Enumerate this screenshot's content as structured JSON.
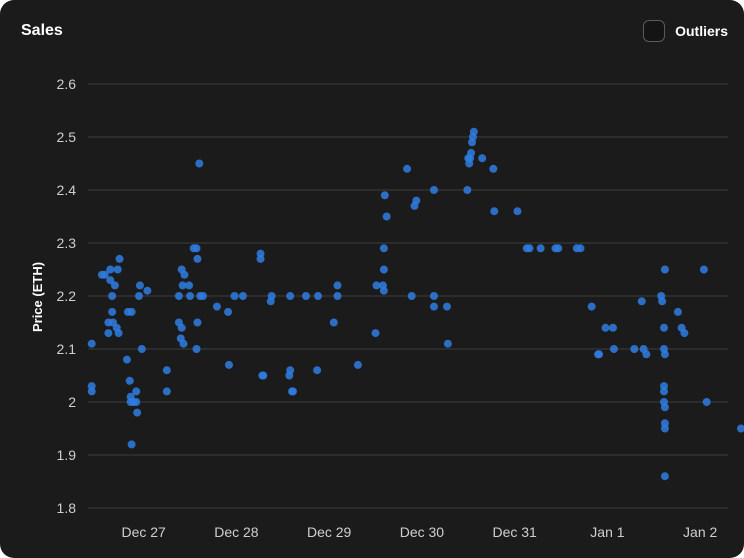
{
  "header": {
    "title": "Sales"
  },
  "toggle": {
    "label": "Outliers",
    "checked": false
  },
  "colors": {
    "background": "#1b1b1b",
    "point": "#2f7de1",
    "grid": "#3d3d3d"
  },
  "chart_data": {
    "type": "scatter",
    "title": "Sales",
    "ylabel": "Price (ETH)",
    "xlabel": "",
    "xlim": [
      -0.6,
      6.3
    ],
    "ylim": [
      1.8,
      2.6
    ],
    "yticks": [
      1.8,
      1.9,
      2.0,
      2.1,
      2.2,
      2.3,
      2.4,
      2.5,
      2.6
    ],
    "xtick_positions": [
      0,
      1,
      2,
      3,
      4,
      5,
      6
    ],
    "xtick_labels": [
      "Dec 27",
      "Dec 28",
      "Dec 29",
      "Dec 30",
      "Dec 31",
      "Jan 1",
      "Jan 2"
    ],
    "grid": "horizontal",
    "points": [
      [
        -0.56,
        2.02
      ],
      [
        -0.56,
        2.03
      ],
      [
        -0.56,
        2.11
      ],
      [
        -0.45,
        2.24
      ],
      [
        -0.42,
        2.24
      ],
      [
        -0.38,
        2.13
      ],
      [
        -0.38,
        2.15
      ],
      [
        -0.36,
        2.23
      ],
      [
        -0.36,
        2.25
      ],
      [
        -0.34,
        2.2
      ],
      [
        -0.34,
        2.17
      ],
      [
        -0.33,
        2.15
      ],
      [
        -0.31,
        2.22
      ],
      [
        -0.29,
        2.14
      ],
      [
        -0.28,
        2.25
      ],
      [
        -0.26,
        2.27
      ],
      [
        -0.27,
        2.13
      ],
      [
        -0.18,
        2.08
      ],
      [
        -0.17,
        2.17
      ],
      [
        -0.15,
        2.04
      ],
      [
        -0.14,
        2.01
      ],
      [
        -0.14,
        2.0
      ],
      [
        -0.13,
        2.17
      ],
      [
        -0.13,
        1.92
      ],
      [
        -0.11,
        2.0
      ],
      [
        -0.08,
        2.0
      ],
      [
        -0.08,
        2.02
      ],
      [
        -0.07,
        1.98
      ],
      [
        -0.05,
        2.2
      ],
      [
        -0.04,
        2.22
      ],
      [
        -0.02,
        2.1
      ],
      [
        0.04,
        2.21
      ],
      [
        0.25,
        2.02
      ],
      [
        0.25,
        2.06
      ],
      [
        0.38,
        2.2
      ],
      [
        0.38,
        2.15
      ],
      [
        0.4,
        2.12
      ],
      [
        0.41,
        2.14
      ],
      [
        0.41,
        2.25
      ],
      [
        0.42,
        2.22
      ],
      [
        0.43,
        2.11
      ],
      [
        0.44,
        2.24
      ],
      [
        0.49,
        2.22
      ],
      [
        0.5,
        2.2
      ],
      [
        0.54,
        2.29
      ],
      [
        0.57,
        2.29
      ],
      [
        0.58,
        2.27
      ],
      [
        0.58,
        2.15
      ],
      [
        0.57,
        2.1
      ],
      [
        0.6,
        2.45
      ],
      [
        0.61,
        2.2
      ],
      [
        0.64,
        2.2
      ],
      [
        0.79,
        2.18
      ],
      [
        0.91,
        2.17
      ],
      [
        0.92,
        2.07
      ],
      [
        0.98,
        2.2
      ],
      [
        1.07,
        2.2
      ],
      [
        1.26,
        2.27
      ],
      [
        1.26,
        2.28
      ],
      [
        1.28,
        2.05
      ],
      [
        1.29,
        2.05
      ],
      [
        1.37,
        2.19
      ],
      [
        1.38,
        2.2
      ],
      [
        1.57,
        2.05
      ],
      [
        1.58,
        2.06
      ],
      [
        1.6,
        2.02
      ],
      [
        1.61,
        2.02
      ],
      [
        1.58,
        2.2
      ],
      [
        1.75,
        2.2
      ],
      [
        1.87,
        2.06
      ],
      [
        1.88,
        2.2
      ],
      [
        2.05,
        2.15
      ],
      [
        2.09,
        2.2
      ],
      [
        2.09,
        2.22
      ],
      [
        2.31,
        2.07
      ],
      [
        2.5,
        2.13
      ],
      [
        2.51,
        2.22
      ],
      [
        2.58,
        2.22
      ],
      [
        2.59,
        2.21
      ],
      [
        2.59,
        2.25
      ],
      [
        2.59,
        2.29
      ],
      [
        2.6,
        2.39
      ],
      [
        2.62,
        2.35
      ],
      [
        2.84,
        2.44
      ],
      [
        2.89,
        2.2
      ],
      [
        2.92,
        2.37
      ],
      [
        2.94,
        2.38
      ],
      [
        3.13,
        2.4
      ],
      [
        3.13,
        2.18
      ],
      [
        3.13,
        2.2
      ],
      [
        3.27,
        2.18
      ],
      [
        3.28,
        2.11
      ],
      [
        3.49,
        2.4
      ],
      [
        3.5,
        2.46
      ],
      [
        3.51,
        2.45
      ],
      [
        3.52,
        2.46
      ],
      [
        3.53,
        2.47
      ],
      [
        3.54,
        2.49
      ],
      [
        3.55,
        2.5
      ],
      [
        3.56,
        2.51
      ],
      [
        3.65,
        2.46
      ],
      [
        3.77,
        2.44
      ],
      [
        3.78,
        2.36
      ],
      [
        4.03,
        2.36
      ],
      [
        4.13,
        2.29
      ],
      [
        4.16,
        2.29
      ],
      [
        4.28,
        2.29
      ],
      [
        4.44,
        2.29
      ],
      [
        4.47,
        2.29
      ],
      [
        4.67,
        2.29
      ],
      [
        4.71,
        2.29
      ],
      [
        4.83,
        2.18
      ],
      [
        4.9,
        2.09
      ],
      [
        4.91,
        2.09
      ],
      [
        4.98,
        2.14
      ],
      [
        5.06,
        2.14
      ],
      [
        5.07,
        2.1
      ],
      [
        5.29,
        2.1
      ],
      [
        5.37,
        2.19
      ],
      [
        5.39,
        2.1
      ],
      [
        5.42,
        2.09
      ],
      [
        5.58,
        2.2
      ],
      [
        5.59,
        2.19
      ],
      [
        5.61,
        2.14
      ],
      [
        5.61,
        2.1
      ],
      [
        5.62,
        2.25
      ],
      [
        5.61,
        2.03
      ],
      [
        5.61,
        2.02
      ],
      [
        5.61,
        2.0
      ],
      [
        5.62,
        1.99
      ],
      [
        5.62,
        1.96
      ],
      [
        5.62,
        1.95
      ],
      [
        5.62,
        1.86
      ],
      [
        5.62,
        2.09
      ],
      [
        5.76,
        2.17
      ],
      [
        5.8,
        2.14
      ],
      [
        5.83,
        2.13
      ],
      [
        6.04,
        2.25
      ],
      [
        6.07,
        2.0
      ],
      [
        6.44,
        1.95
      ]
    ]
  }
}
